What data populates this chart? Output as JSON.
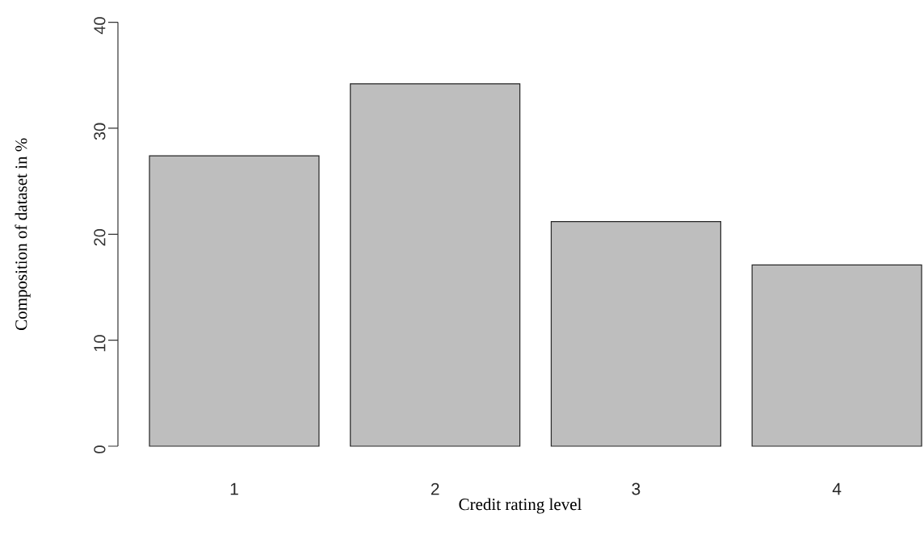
{
  "chart_data": {
    "type": "bar",
    "xlabel": "Credit rating level",
    "ylabel": "Composition of dataset in %",
    "categories": [
      "1",
      "2",
      "3",
      "4"
    ],
    "values": [
      27.4,
      34.2,
      21.2,
      17.1
    ],
    "color": "#bebebe",
    "ylim": [
      0,
      40
    ],
    "yticks": [
      0,
      10,
      20,
      30,
      40
    ]
  }
}
